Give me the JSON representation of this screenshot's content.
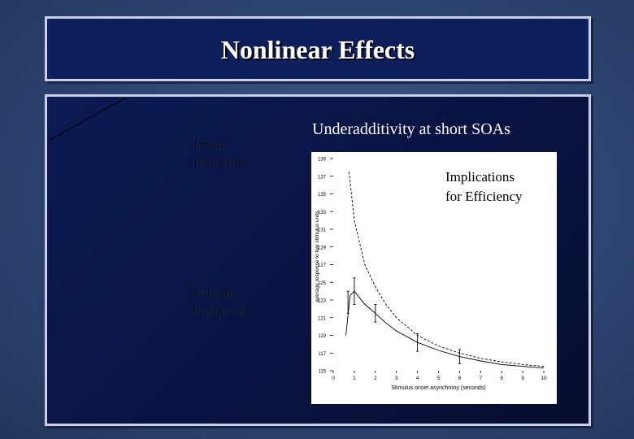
{
  "slide": {
    "title": "Nonlinear Effects",
    "heading": "Underadditivity at short SOAs",
    "linear_label": [
      "Linear",
      "Prediction"
    ],
    "volterra_label": [
      "Volterra",
      "Prediction"
    ],
    "implications": [
      "Implications",
      "for Efficiency"
    ]
  },
  "chart_data": {
    "type": "line",
    "xlabel": "Stimulus onset asynchrony (seconds)",
    "ylabel": "average response to two stimulus units",
    "xlim": [
      0,
      10
    ],
    "ylim": [
      115,
      139
    ],
    "x_ticks": [
      0,
      1,
      2,
      3,
      4,
      5,
      6,
      7,
      8,
      9,
      10
    ],
    "y_ticks": [
      115,
      117,
      119,
      121,
      123,
      125,
      127,
      129,
      131,
      133,
      135,
      137,
      139
    ],
    "series": [
      {
        "style": "dashed",
        "x": [
          0.75,
          1,
          1.5,
          2,
          2.5,
          3,
          4,
          5,
          6,
          7,
          8,
          9,
          10
        ],
        "y": [
          137.5,
          132,
          127,
          124.5,
          122.5,
          121,
          119,
          117.8,
          117,
          116.4,
          116,
          115.7,
          115.5
        ]
      },
      {
        "style": "solid",
        "x": [
          0.6,
          0.8,
          1,
          1.5,
          2,
          2.5,
          3,
          4,
          5,
          6,
          7,
          8,
          9,
          10
        ],
        "y": [
          119,
          123.5,
          124,
          122.5,
          121.5,
          120.4,
          119.5,
          118.2,
          117.3,
          116.6,
          116.1,
          115.7,
          115.5,
          115.3
        ]
      }
    ],
    "error_bars": [
      {
        "x": 0.7,
        "y": 122.5,
        "low": 121.5,
        "high": 124
      },
      {
        "x": 1,
        "y": 124,
        "low": 122.5,
        "high": 125.5
      },
      {
        "x": 2,
        "y": 121.5,
        "low": 120.5,
        "high": 122.5
      },
      {
        "x": 4,
        "y": 118.2,
        "low": 117.2,
        "high": 119.2
      },
      {
        "x": 6,
        "y": 116.6,
        "low": 115.8,
        "high": 117.4
      }
    ]
  }
}
